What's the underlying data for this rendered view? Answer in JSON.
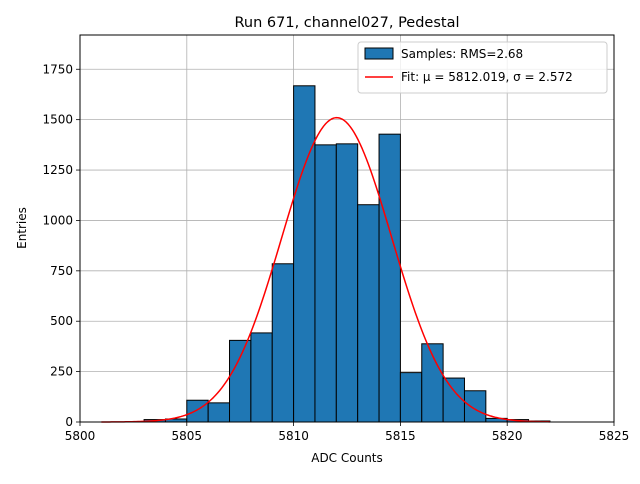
{
  "chart_data": {
    "type": "bar",
    "title": "Run 671, channel027, Pedestal",
    "xlabel": "ADC Counts",
    "ylabel": "Entries",
    "xlim": [
      5800,
      5825
    ],
    "ylim": [
      0,
      1920
    ],
    "grid": true,
    "xticks": [
      5800,
      5805,
      5810,
      5815,
      5820,
      5825
    ],
    "yticks": [
      0,
      250,
      500,
      750,
      1000,
      1250,
      1500,
      1750
    ],
    "bin_width": 1,
    "bins": [
      {
        "left": 5803,
        "value": 12
      },
      {
        "left": 5804,
        "value": 15
      },
      {
        "left": 5805,
        "value": 108
      },
      {
        "left": 5806,
        "value": 95
      },
      {
        "left": 5807,
        "value": 405
      },
      {
        "left": 5808,
        "value": 442
      },
      {
        "left": 5809,
        "value": 785
      },
      {
        "left": 5810,
        "value": 1668
      },
      {
        "left": 5811,
        "value": 1375
      },
      {
        "left": 5812,
        "value": 1380
      },
      {
        "left": 5813,
        "value": 1078
      },
      {
        "left": 5814,
        "value": 1428
      },
      {
        "left": 5815,
        "value": 245
      },
      {
        "left": 5816,
        "value": 388
      },
      {
        "left": 5817,
        "value": 218
      },
      {
        "left": 5818,
        "value": 155
      },
      {
        "left": 5819,
        "value": 18
      },
      {
        "left": 5820,
        "value": 12
      },
      {
        "left": 5821,
        "value": 5
      }
    ],
    "fit": {
      "mu": 5812.019,
      "sigma": 2.572,
      "amplitude": 1510,
      "x_range": [
        5801,
        5822
      ]
    },
    "legend": {
      "position": "top-right",
      "entries": [
        {
          "label": "Samples: RMS=2.68",
          "kind": "patch"
        },
        {
          "label": "Fit: μ = 5812.019, σ = 2.572",
          "kind": "line"
        }
      ]
    },
    "colors": {
      "bars": "#1f77b4",
      "bar_edge": "#000000",
      "fit": "#ff0000",
      "grid": "#b0b0b0"
    }
  }
}
